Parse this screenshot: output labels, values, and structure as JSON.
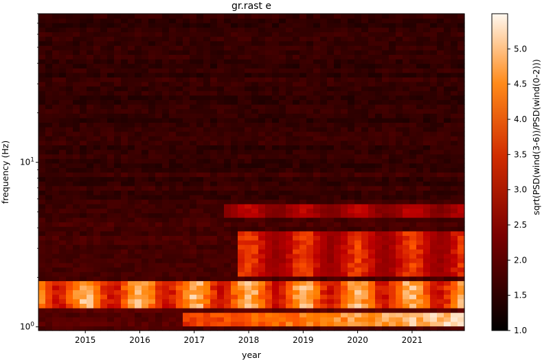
{
  "chart_data": {
    "type": "heatmap",
    "title": "gr.rast e",
    "xlabel": "year",
    "ylabel": "frequency (Hz)",
    "xlim": [
      2014.14,
      2021.96
    ],
    "ylim": [
      0.95,
      80
    ],
    "yscale": "log",
    "x_ticks": [
      2015,
      2016,
      2017,
      2018,
      2019,
      2020,
      2021
    ],
    "x_tick_labels": [
      "2015",
      "2016",
      "2017",
      "2018",
      "2019",
      "2020",
      "2021"
    ],
    "y_ticks": [
      1,
      10
    ],
    "y_tick_labels": [
      "10^0",
      "10^1"
    ],
    "colormap": "gist_heat",
    "colorbar": {
      "label": "sqrt(PSD(wind(3-6))/PSD(wind(0-2)))",
      "vmin": 1.0,
      "vmax": 5.5,
      "ticks": [
        1.0,
        1.5,
        2.0,
        2.5,
        3.0,
        3.5,
        4.0,
        4.5,
        5.0
      ],
      "tick_labels": [
        "1.0",
        "1.5",
        "2.0",
        "2.5",
        "3.0",
        "3.5",
        "4.0",
        "4.5",
        "5.0"
      ]
    },
    "bright_bands_hz": [
      {
        "freq_range": [
          1.0,
          1.25
        ],
        "peak_value": 5.5,
        "years": [
          2016.8,
          2021.96
        ]
      },
      {
        "freq_range": [
          1.3,
          1.9
        ],
        "peak_value": 5.2,
        "years": [
          2014.14,
          2021.96
        ]
      },
      {
        "freq_range": [
          2.0,
          3.8
        ],
        "peak_value": 4.0,
        "years": [
          2017.8,
          2021.96
        ]
      },
      {
        "freq_range": [
          4.5,
          5.5
        ],
        "peak_value": 3.4,
        "years": [
          2017.5,
          2021.96
        ]
      }
    ],
    "background_value_high_freq": 1.6
  }
}
